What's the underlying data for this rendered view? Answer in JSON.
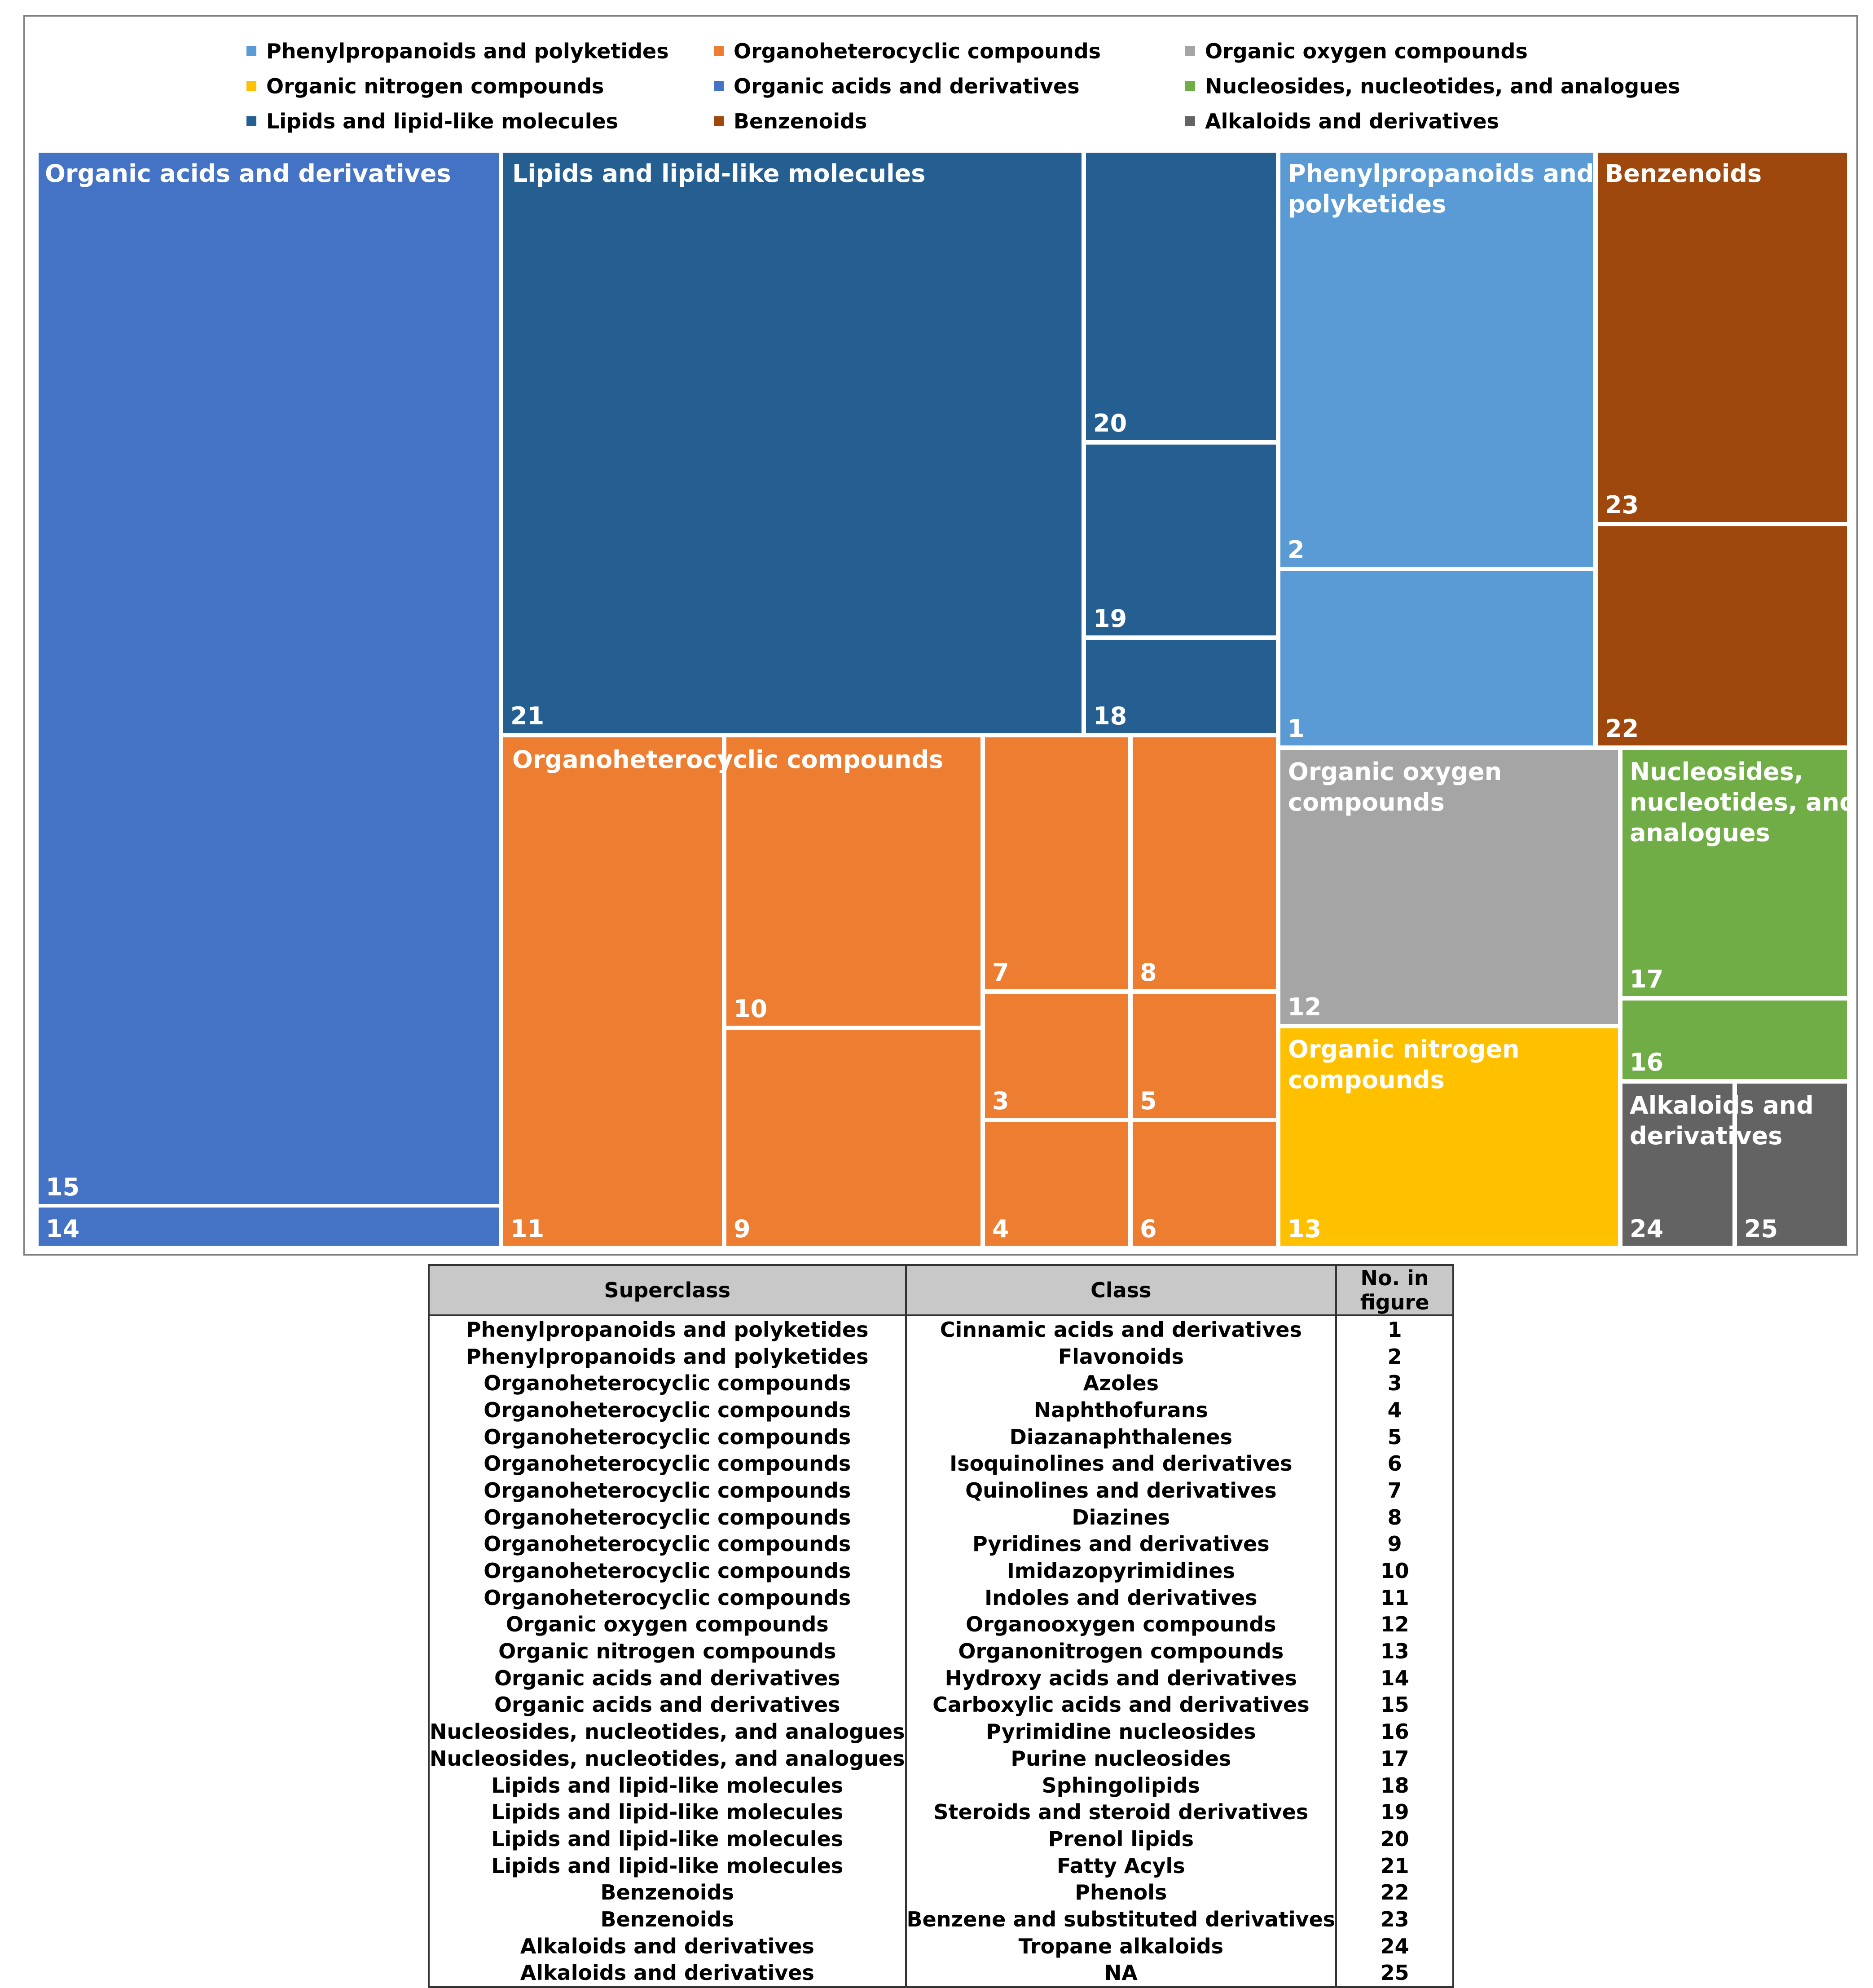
{
  "chart_data": {
    "type": "treemap",
    "title": "",
    "legend": [
      {
        "name": "Phenylpropanoids and polyketides",
        "color": "#5b9bd5"
      },
      {
        "name": "Organoheterocyclic compounds",
        "color": "#ed7d31"
      },
      {
        "name": "Organic oxygen compounds",
        "color": "#a5a5a5"
      },
      {
        "name": "Organic nitrogen compounds",
        "color": "#ffc000"
      },
      {
        "name": "Organic acids and derivatives",
        "color": "#4472c4"
      },
      {
        "name": "Nucleosides, nucleotides, and analogues",
        "color": "#70ad47"
      },
      {
        "name": "Lipids and lipid-like molecules",
        "color": "#255e91"
      },
      {
        "name": "Benzenoids",
        "color": "#9e480e"
      },
      {
        "name": "Alkaloids and derivatives",
        "color": "#636363"
      }
    ],
    "groups": [
      {
        "name": "Organic acids and derivatives",
        "label": "Organic acids and derivatives",
        "color": "#4472c4"
      },
      {
        "name": "Lipids and lipid-like molecules",
        "label": "Lipids and lipid-like molecules",
        "color": "#255e91"
      },
      {
        "name": "Phenylpropanoids and polyketides",
        "label": "Phenylpropanoids and\npolyketides",
        "color": "#5b9bd5"
      },
      {
        "name": "Benzenoids",
        "label": "Benzenoids",
        "color": "#9e480e"
      },
      {
        "name": "Organoheterocyclic compounds",
        "label": "Organoheterocyclic compounds",
        "color": "#ed7d31"
      },
      {
        "name": "Organic oxygen compounds",
        "label": "Organic oxygen\ncompounds",
        "color": "#a5a5a5"
      },
      {
        "name": "Nucleosides, nucleotides, and analogues",
        "label": "Nucleosides,\nnucleotides, and\nanalogues",
        "color": "#70ad47"
      },
      {
        "name": "Organic nitrogen compounds",
        "label": "Organic nitrogen\ncompounds",
        "color": "#ffc000"
      },
      {
        "name": "Alkaloids and derivatives",
        "label": "Alkaloids and\nderivatives",
        "color": "#636363"
      }
    ],
    "tiles": [
      {
        "id": "15",
        "group": "Organic acids and derivatives",
        "class": "Carboxylic acids and derivatives"
      },
      {
        "id": "14",
        "group": "Organic acids and derivatives",
        "class": "Hydroxy acids and derivatives"
      },
      {
        "id": "21",
        "group": "Lipids and lipid-like molecules",
        "class": "Fatty Acyls"
      },
      {
        "id": "20",
        "group": "Lipids and lipid-like molecules",
        "class": "Prenol lipids"
      },
      {
        "id": "19",
        "group": "Lipids and lipid-like molecules",
        "class": "Steroids and steroid derivatives"
      },
      {
        "id": "18",
        "group": "Lipids and lipid-like molecules",
        "class": "Sphingolipids"
      },
      {
        "id": "2",
        "group": "Phenylpropanoids and polyketides",
        "class": "Flavonoids"
      },
      {
        "id": "1",
        "group": "Phenylpropanoids and polyketides",
        "class": "Cinnamic acids and derivatives"
      },
      {
        "id": "23",
        "group": "Benzenoids",
        "class": "Benzene and substituted derivatives"
      },
      {
        "id": "22",
        "group": "Benzenoids",
        "class": "Phenols"
      },
      {
        "id": "11",
        "group": "Organoheterocyclic compounds",
        "class": "Indoles and derivatives"
      },
      {
        "id": "10",
        "group": "Organoheterocyclic compounds",
        "class": "Imidazopyrimidines"
      },
      {
        "id": "9",
        "group": "Organoheterocyclic compounds",
        "class": "Pyridines and derivatives"
      },
      {
        "id": "7",
        "group": "Organoheterocyclic compounds",
        "class": "Quinolines and derivatives"
      },
      {
        "id": "8",
        "group": "Organoheterocyclic compounds",
        "class": "Diazines"
      },
      {
        "id": "3",
        "group": "Organoheterocyclic compounds",
        "class": "Azoles"
      },
      {
        "id": "5",
        "group": "Organoheterocyclic compounds",
        "class": "Diazanaphthalenes"
      },
      {
        "id": "4",
        "group": "Organoheterocyclic compounds",
        "class": "Naphthofurans"
      },
      {
        "id": "6",
        "group": "Organoheterocyclic compounds",
        "class": "Isoquinolines and derivatives"
      },
      {
        "id": "12",
        "group": "Organic oxygen compounds",
        "class": "Organooxygen compounds"
      },
      {
        "id": "17",
        "group": "Nucleosides, nucleotides, and analogues",
        "class": "Purine nucleosides"
      },
      {
        "id": "16",
        "group": "Nucleosides, nucleotides, and analogues",
        "class": "Pyrimidine nucleosides"
      },
      {
        "id": "13",
        "group": "Organic nitrogen compounds",
        "class": "Organonitrogen compounds"
      },
      {
        "id": "24",
        "group": "Alkaloids and derivatives",
        "class": "Tropane alkaloids"
      },
      {
        "id": "25",
        "group": "Alkaloids and derivatives",
        "class": "NA"
      }
    ]
  },
  "table": {
    "headers": [
      "Superclass",
      "Class",
      "No. in figure"
    ],
    "rows": [
      [
        "Phenylpropanoids and polyketides",
        "Cinnamic acids and derivatives",
        "1"
      ],
      [
        "Phenylpropanoids and polyketides",
        "Flavonoids",
        "2"
      ],
      [
        "Organoheterocyclic compounds",
        "Azoles",
        "3"
      ],
      [
        "Organoheterocyclic compounds",
        "Naphthofurans",
        "4"
      ],
      [
        "Organoheterocyclic compounds",
        "Diazanaphthalenes",
        "5"
      ],
      [
        "Organoheterocyclic compounds",
        "Isoquinolines and derivatives",
        "6"
      ],
      [
        "Organoheterocyclic compounds",
        "Quinolines and derivatives",
        "7"
      ],
      [
        "Organoheterocyclic compounds",
        "Diazines",
        "8"
      ],
      [
        "Organoheterocyclic compounds",
        "Pyridines and derivatives",
        "9"
      ],
      [
        "Organoheterocyclic compounds",
        "Imidazopyrimidines",
        "10"
      ],
      [
        "Organoheterocyclic compounds",
        "Indoles and derivatives",
        "11"
      ],
      [
        "Organic oxygen compounds",
        "Organooxygen compounds",
        "12"
      ],
      [
        "Organic nitrogen compounds",
        "Organonitrogen compounds",
        "13"
      ],
      [
        "Organic acids and derivatives",
        "Hydroxy acids and derivatives",
        "14"
      ],
      [
        "Organic acids and derivatives",
        "Carboxylic acids and derivatives",
        "15"
      ],
      [
        "Nucleosides, nucleotides, and analogues",
        "Pyrimidine nucleosides",
        "16"
      ],
      [
        "Nucleosides, nucleotides, and analogues",
        "Purine nucleosides",
        "17"
      ],
      [
        "Lipids and lipid-like molecules",
        "Sphingolipids",
        "18"
      ],
      [
        "Lipids and lipid-like molecules",
        "Steroids and steroid derivatives",
        "19"
      ],
      [
        "Lipids and lipid-like molecules",
        "Prenol lipids",
        "20"
      ],
      [
        "Lipids and lipid-like molecules",
        "Fatty Acyls",
        "21"
      ],
      [
        "Benzenoids",
        "Phenols",
        "22"
      ],
      [
        "Benzenoids",
        "Benzene and substituted derivatives",
        "23"
      ],
      [
        "Alkaloids and derivatives",
        "Tropane alkaloids",
        "24"
      ],
      [
        "Alkaloids and derivatives",
        "NA",
        "25"
      ]
    ]
  }
}
